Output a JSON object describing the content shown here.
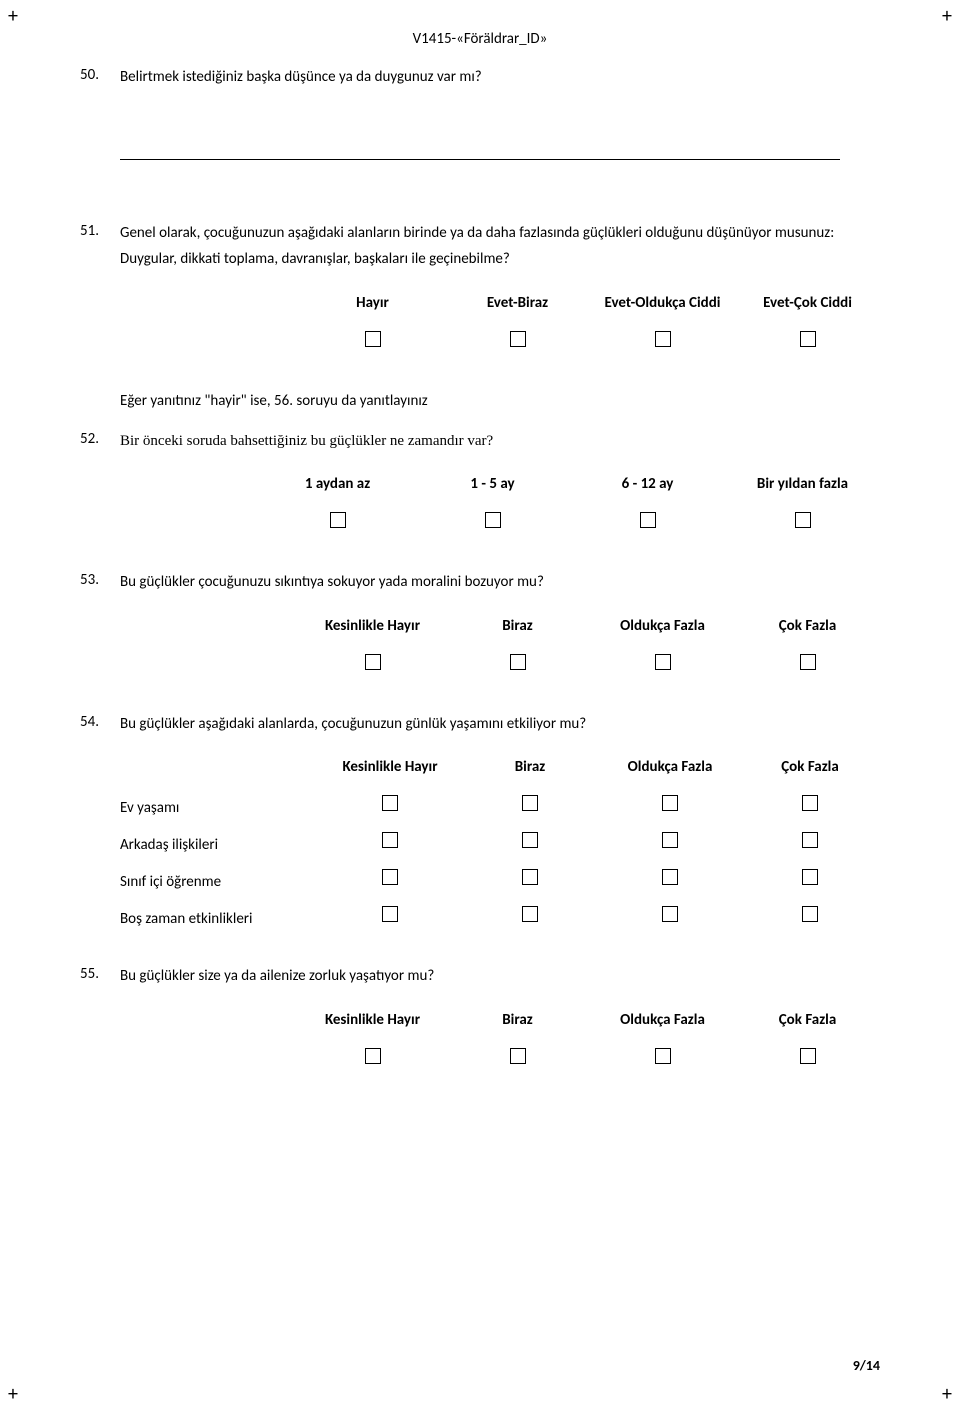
{
  "header": {
    "doc_id": "V1415-«Föräldrar_ID»"
  },
  "crop_marks": {
    "symbol": "+"
  },
  "q50": {
    "num": "50.",
    "text": "Belirtmek istediğiniz başka düşünce ya da duygunuz var mı?"
  },
  "q51": {
    "num": "51.",
    "text": "Genel olarak, çocuğunuzun aşağıdaki alanların birinde ya da daha fazlasında güçlükleri olduğunu düşünüyor musunuz:",
    "sub": "Duygular, dikkati toplama, davranışlar, başkaları ile geçinebilme?",
    "headers": [
      "Hayır",
      "Evet-Biraz",
      "Evet-Oldukça Ciddi",
      "Evet-Çok Ciddi"
    ]
  },
  "skip_note": "Eğer yanıtınız \"hayir\" ise, 56. soruyu da yanıtlayınız",
  "q52": {
    "num": "52.",
    "text": "Bir önceki soruda bahsettiğiniz bu güçlükler ne zamandır var?",
    "headers": [
      "1 aydan az",
      "1 - 5 ay",
      "6 - 12 ay",
      "Bir yıldan fazla"
    ]
  },
  "q53": {
    "num": "53.",
    "text": "Bu güçlükler çocuğunuzu sıkıntıya sokuyor yada moralini bozuyor mu?",
    "headers": [
      "Kesinlikle Hayır",
      "Biraz",
      "Oldukça Fazla",
      "Çok Fazla"
    ]
  },
  "q54": {
    "num": "54.",
    "text": "Bu güçlükler aşağıdaki alanlarda, çocuğunuzun günlük yaşamını etkiliyor mu?",
    "headers": [
      "Kesinlikle Hayır",
      "Biraz",
      "Oldukça Fazla",
      "Çok Fazla"
    ],
    "rows": [
      "Ev yaşamı",
      "Arkadaş ilişkileri",
      "Sınıf içi öğrenme",
      "Boş zaman etkinlikleri"
    ]
  },
  "q55": {
    "num": "55.",
    "text": "Bu güçlükler size ya da ailenize zorluk yaşatıyor mu?",
    "headers": [
      "Kesinlikle Hayır",
      "Biraz",
      "Oldukça Fazla",
      "Çok Fazla"
    ]
  },
  "footer": {
    "page": "9/14"
  }
}
